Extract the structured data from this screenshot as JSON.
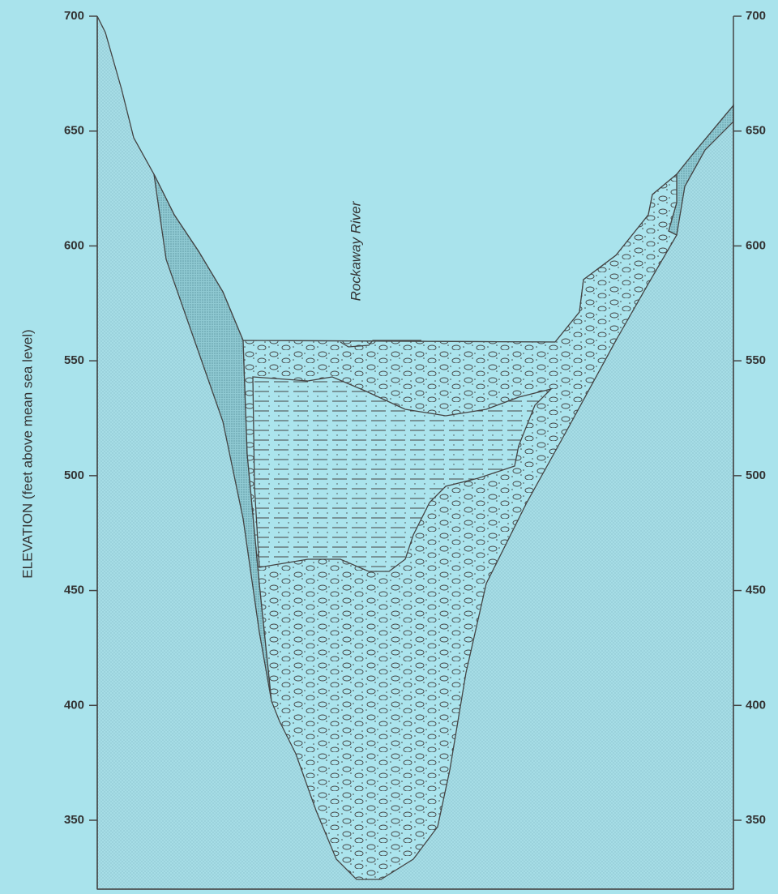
{
  "axis_label": "ELEVATION (feet above mean sea level)",
  "left_ticks": [
    700,
    650,
    600,
    550,
    500,
    450,
    400,
    350
  ],
  "right_ticks": [
    700,
    650,
    600,
    550,
    500,
    450,
    400,
    350
  ],
  "feature_label": "Rockaway River"
}
